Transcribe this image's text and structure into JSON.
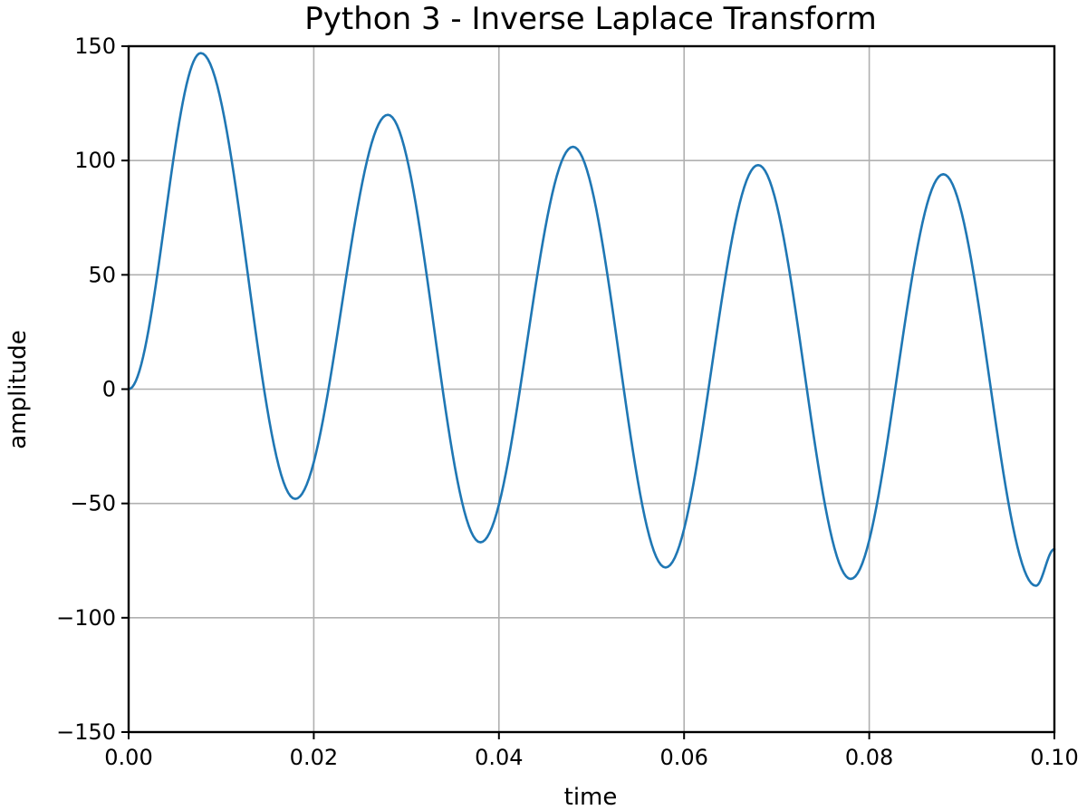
{
  "chart_data": {
    "type": "line",
    "title": "Python 3 - Inverse Laplace Transform",
    "xlabel": "time",
    "ylabel": "amplitude",
    "xlim": [
      0.0,
      0.1
    ],
    "ylim": [
      -150,
      150
    ],
    "grid": true,
    "x_ticks": [
      0.0,
      0.02,
      0.04,
      0.06,
      0.08,
      0.1
    ],
    "x_tick_labels": [
      "0.00",
      "0.02",
      "0.04",
      "0.06",
      "0.08",
      "0.10"
    ],
    "y_ticks": [
      150,
      100,
      50,
      0,
      -50,
      -100,
      -150
    ],
    "y_tick_labels": [
      "150",
      "100",
      "50",
      "0",
      "−50",
      "−100",
      "−150"
    ],
    "series": [
      {
        "color": "#1f77b4",
        "x": [
          0.0,
          0.0078,
          0.018,
          0.028,
          0.038,
          0.048,
          0.058,
          0.068,
          0.078,
          0.088,
          0.098,
          0.1
        ],
        "y": [
          0,
          147,
          -48,
          120,
          -67,
          106,
          -78,
          98,
          -83,
          94,
          -86,
          -70
        ]
      }
    ]
  }
}
